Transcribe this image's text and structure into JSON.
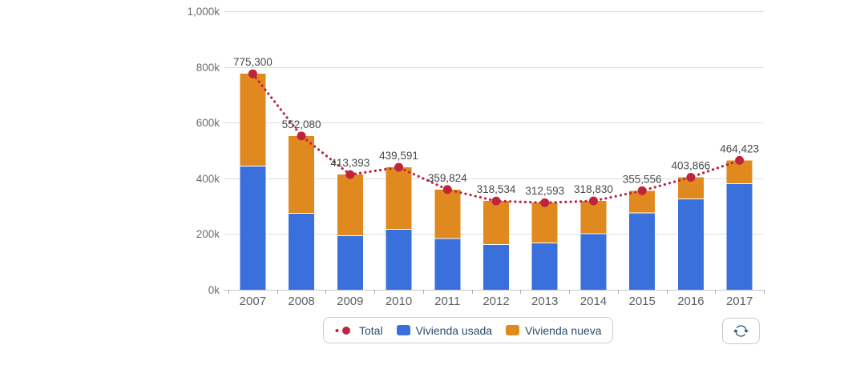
{
  "chart_data": {
    "type": "bar",
    "stacked": true,
    "title": "",
    "categories": [
      "2007",
      "2008",
      "2009",
      "2010",
      "2011",
      "2012",
      "2013",
      "2014",
      "2015",
      "2016",
      "2017"
    ],
    "series": [
      {
        "name": "Vivienda usada",
        "color": "#3a70dc",
        "values": [
          443000,
          273000,
          193000,
          215000,
          183000,
          161000,
          167000,
          199000,
          274000,
          325000,
          379000
        ]
      },
      {
        "name": "Vivienda nueva",
        "color": "#e0891e",
        "values": [
          332300,
          279080,
          220393,
          224591,
          176824,
          157534,
          145593,
          119830,
          81556,
          78866,
          85423
        ]
      }
    ],
    "line_series": {
      "name": "Total",
      "color": "#c0243c",
      "style": "dotted",
      "values": [
        775300,
        552080,
        413393,
        439591,
        359824,
        318534,
        312593,
        318830,
        355556,
        403866,
        464423
      ],
      "labels": [
        "775,300",
        "552,080",
        "413,393",
        "439,591",
        "359,824",
        "318,534",
        "312,593",
        "318,830",
        "355,556",
        "403,866",
        "464,423"
      ]
    },
    "ylim": [
      0,
      1000000
    ],
    "y_ticks": [
      {
        "value": 0,
        "label": "0k"
      },
      {
        "value": 200000,
        "label": "200k"
      },
      {
        "value": 400000,
        "label": "400k"
      },
      {
        "value": 600000,
        "label": "600k"
      },
      {
        "value": 800000,
        "label": "800k"
      },
      {
        "value": 1000000,
        "label": "1,000k"
      }
    ],
    "grid": true,
    "legend_position": "bottom"
  },
  "legend": {
    "total": "Total",
    "usada": "Vivienda usada",
    "nueva": "Vivienda nueva"
  },
  "controls": {
    "refresh_icon": "circular-arrows"
  },
  "colors": {
    "grid": "#dcdee2",
    "axis": "#c3c7d0",
    "tick": "#a9adb5",
    "y_label": "#6a6d72",
    "x_label": "#5d6167",
    "data_label": "#47494d",
    "legend_text": "#2b4a6e",
    "refresh_icon": "#1f4e79"
  }
}
